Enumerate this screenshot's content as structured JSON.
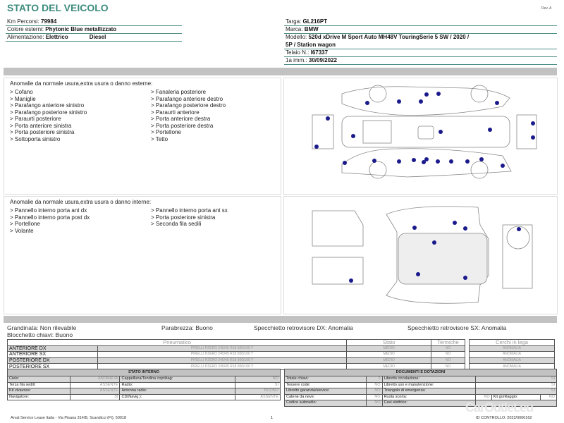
{
  "header": {
    "title": "STATO DEL VEICOLO",
    "rev": "Rev. A"
  },
  "left_info": [
    {
      "label": "Km Percorsi:",
      "value": "79984"
    },
    {
      "label": "Colore esterni:",
      "value": "Phytonic Blue metallizzato"
    },
    {
      "label": "Alimentazione:",
      "value": "Elettrico",
      "value2": "Diesel"
    }
  ],
  "right_info": [
    {
      "label": "Targa:",
      "value": "GL216PT"
    },
    {
      "label": "Marca:",
      "value": "BMW"
    },
    {
      "label": "Modello:",
      "value": "520d xDrive M Sport Auto MH48V TouringSerie 5 SW / 2020 /",
      "value_cont": "5P / Station wagon"
    },
    {
      "label": "Telaio N.:",
      "value": "I67337"
    },
    {
      "label": "1a imm.:",
      "value": "30/09/2022"
    }
  ],
  "exterior": {
    "title": "Anomalie da normale usura,extra usura o danno esterne:",
    "col1": [
      "> Cofano",
      "> Maniglie",
      "> Parafango anteriore sinistro",
      "> Parafango posteriore sinistro",
      "> Paraurti posteriore",
      "> Porta anteriore sinistra",
      "> Porta posteriore sinistra",
      "> Sottoporta sinistro"
    ],
    "col2": [
      "> Fanaleria posteriore",
      "> Parafango anteriore destro",
      "> Parafango posteriore destro",
      "> Paraurti anteriore",
      "> Porta anteriore destra",
      "> Porta posteriore destra",
      "> Portellone",
      "> Tetto"
    ]
  },
  "interior": {
    "title": "Anomalie da normale usura,extra usura o danno interne:",
    "col1": [
      "> Pannello interno porta ant dx",
      "> Pannello interno porta post dx",
      "> Portellone",
      "> Volante"
    ],
    "col2": [
      "> Pannello interno porta ant sx",
      "> Porta posteriore sinistra",
      "> Seconda fila sedili"
    ]
  },
  "marker_color": "#1a1a8c",
  "accent_color": "#3d8b7d",
  "status": [
    {
      "label": "Grandinata:",
      "value": "Non rilevabile"
    },
    {
      "label": "Parabrezza:",
      "value": "Buono"
    },
    {
      "label": "Specchietto retrovisore DX:",
      "value": "Anomalia"
    },
    {
      "label": "Specchietto retrovisore SX:",
      "value": "Anomalia"
    },
    {
      "label": "Blocchetto chiavi:",
      "value": "Buono"
    }
  ],
  "tyres": {
    "headers": [
      "Pneumatico",
      "Stato",
      "Termiche"
    ],
    "cerchi_header": "Cerchi in lega",
    "rows": [
      {
        "pos": "ANTERIORE DX",
        "tyre": "PIRELLI PZERO 245/45 R18 000/100 Y",
        "stato": "MEDIO",
        "termiche": "NO",
        "cerchi": "ANOMALIA"
      },
      {
        "pos": "ANTERIORE SX",
        "tyre": "PIRELLI PZERO 245/45 R18 000/100 Y",
        "stato": "MEDIO",
        "termiche": "NO",
        "cerchi": "ANOMALIA"
      },
      {
        "pos": "POSTERIORE DX",
        "tyre": "PIRELLI PZERO 245/45 R18 000/100 Y",
        "stato": "MEDIO",
        "termiche": "NO",
        "cerchi": "ANOMALIA"
      },
      {
        "pos": "POSTERIORE SX",
        "tyre": "PIRELLI PZERO 245/45 R18 000/100 Y",
        "stato": "MEDIO",
        "termiche": "NO",
        "cerchi": "ANOMALIA"
      }
    ]
  },
  "stato_interno": {
    "title": "STATO INTERNO",
    "rows": [
      [
        "Cielo:",
        "ANOMALIA",
        "Cappelliera/Tendina copribag:",
        "NO"
      ],
      [
        "Terza fila sedili:",
        "ASSENTE",
        "Radio:",
        "SI"
      ],
      [
        "Kit vivavoce:",
        "ASSENTE",
        "Antenna radio:",
        "BUONO"
      ],
      [
        "Navigatore:",
        "SI",
        "CD(Navig.):",
        "ASSENTE"
      ]
    ]
  },
  "documenti": {
    "title": "DOCUMENTI E DOTAZIONI",
    "rows": [
      [
        "Totale chiavi:",
        "2",
        "Libretto circolazione:",
        "SI"
      ],
      [
        "Tessere code:",
        "NO",
        "Libretto uso e manutenzione:",
        "SI"
      ],
      [
        "Libretto garanzia/service:",
        "NO",
        "Triangolo di emergenza:",
        "SI"
      ],
      [
        "Catene da neve:",
        "NO",
        "Ruota scorta:",
        "NO",
        "Kit gonfiaggio:",
        "NO"
      ],
      [
        "Codice autoradio:",
        "NO",
        "Cavi elettrico:",
        ""
      ]
    ]
  },
  "footer": {
    "company": "Arval Service Lease Italia - Via Pisana 314/B, Scandicci (FI), 50018",
    "page": "1",
    "id": "ID CONTROLLO: 2022/0000162",
    "watermark": "CarOutlet.eu"
  }
}
